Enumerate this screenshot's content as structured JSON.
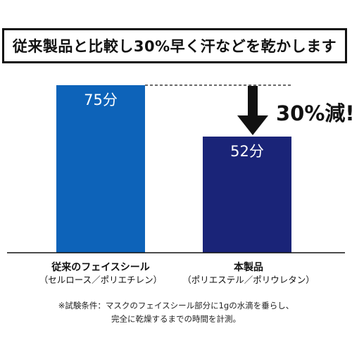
{
  "header": {
    "title": "従来製品と比較し30%早く汗などを乾かします"
  },
  "chart_data": {
    "type": "bar",
    "categories": [
      {
        "name": "従来のフェイスシール",
        "sub": "（セルロース／ポリエチレン）"
      },
      {
        "name": "本製品",
        "sub": "（ポリエステル／ポリウレタン）"
      }
    ],
    "values": [
      75,
      52
    ],
    "value_labels": [
      "75分",
      "52分"
    ],
    "colors": [
      "#0d63b9",
      "#1a2478"
    ],
    "ylim": [
      0,
      75
    ],
    "grid": false,
    "annotation": "30%減!"
  },
  "footnote": {
    "line1": "※試験条件：マスクのフェイスシール部分に1gの水滴を垂らし、",
    "line2": "完全に乾燥するまでの時間を計測。"
  }
}
